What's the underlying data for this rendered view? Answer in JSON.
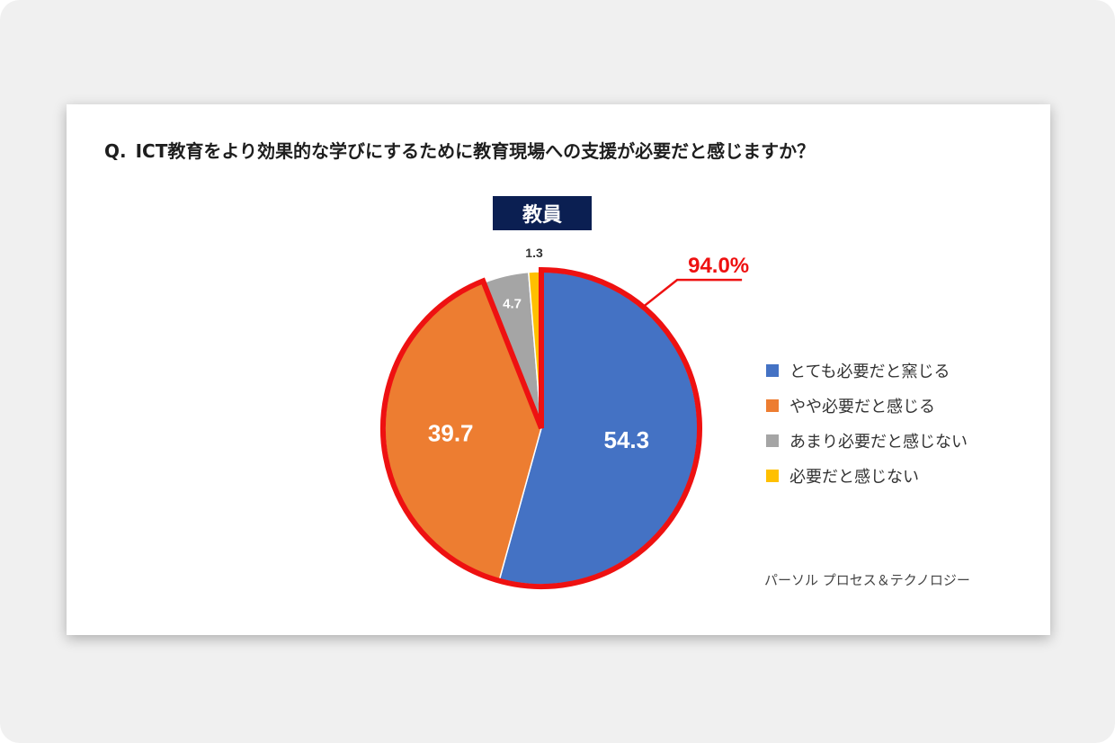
{
  "question": {
    "prefix": "Q.",
    "text": "ICT教育をより効果的な学びにするために教育現場への支援が必要だと感じますか？"
  },
  "chart_data": {
    "type": "pie",
    "title": "教員",
    "slices": [
      {
        "label": "とても必要だと窯じる",
        "value": 54.3,
        "display": "54.3",
        "color": "#4472c4"
      },
      {
        "label": "やや必要だと感じる",
        "value": 39.7,
        "display": "39.7",
        "color": "#ed7d31"
      },
      {
        "label": "あまり必要だと感じない",
        "value": 4.7,
        "display": "4.7",
        "color": "#a5a5a5"
      },
      {
        "label": "必要だと感じない",
        "value": 1.3,
        "display": "1.3",
        "color": "#ffc000"
      }
    ],
    "start_angle_deg": 0,
    "direction": "clockwise",
    "highlight": {
      "text": "94.0%",
      "covers": [
        "とても必要だと窯じる",
        "やや必要だと感じる"
      ],
      "color": "#ee1111"
    },
    "legend_position": "right"
  },
  "source": "パーソル プロセス＆テクノロジー"
}
